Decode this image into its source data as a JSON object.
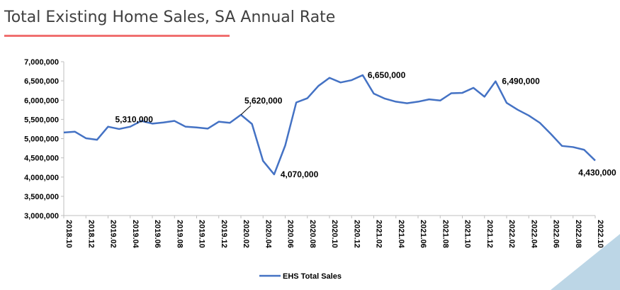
{
  "chart_data": {
    "type": "line",
    "title": "Total Existing Home Sales, SA Annual Rate",
    "xlabel": "",
    "ylabel": "",
    "ylim": [
      3000000,
      7000000
    ],
    "y_ticks": [
      "3,000,000",
      "3,500,000",
      "4,000,000",
      "4,500,000",
      "5,000,000",
      "5,500,000",
      "6,000,000",
      "6,500,000",
      "7,000,000"
    ],
    "x_tick_labels": [
      "2018.10",
      "2018.12",
      "2019.02",
      "2019.04",
      "2019.06",
      "2019.08",
      "2019.10",
      "2019.12",
      "2020.02",
      "2020.04",
      "2020.06",
      "2020.08",
      "2020.10",
      "2020.12",
      "2021.02",
      "2021.04",
      "2021.06",
      "2021.08",
      "2021.10",
      "2021.12",
      "2022.02",
      "2022.04",
      "2022.06",
      "2022.08",
      "2022.10"
    ],
    "categories": [
      "2018.10",
      "2018.11",
      "2018.12",
      "2019.01",
      "2019.02",
      "2019.03",
      "2019.04",
      "2019.05",
      "2019.06",
      "2019.07",
      "2019.08",
      "2019.09",
      "2019.10",
      "2019.11",
      "2019.12",
      "2020.01",
      "2020.02",
      "2020.03",
      "2020.04",
      "2020.05",
      "2020.06",
      "2020.07",
      "2020.08",
      "2020.09",
      "2020.10",
      "2020.11",
      "2020.12",
      "2021.01",
      "2021.02",
      "2021.03",
      "2021.04",
      "2021.05",
      "2021.06",
      "2021.07",
      "2021.08",
      "2021.09",
      "2021.10",
      "2021.11",
      "2021.12",
      "2022.01",
      "2022.02",
      "2022.03",
      "2022.04",
      "2022.05",
      "2022.06",
      "2022.07",
      "2022.08",
      "2022.09",
      "2022.10"
    ],
    "series": [
      {
        "name": "EHS Total Sales",
        "color": "#4472c4",
        "values": [
          5160000,
          5180000,
          5010000,
          4970000,
          5310000,
          5250000,
          5310000,
          5460000,
          5390000,
          5420000,
          5460000,
          5310000,
          5290000,
          5260000,
          5440000,
          5410000,
          5620000,
          5380000,
          4420000,
          4070000,
          4820000,
          5940000,
          6050000,
          6370000,
          6580000,
          6460000,
          6520000,
          6650000,
          6170000,
          6040000,
          5960000,
          5920000,
          5960000,
          6020000,
          5990000,
          6180000,
          6190000,
          6320000,
          6090000,
          6490000,
          5930000,
          5750000,
          5600000,
          5410000,
          5120000,
          4810000,
          4780000,
          4710000,
          4430000
        ]
      }
    ],
    "annotations": [
      {
        "index": 4,
        "text": "5,310,000"
      },
      {
        "index": 16,
        "text": "5,620,000"
      },
      {
        "index": 19,
        "text": "4,070,000"
      },
      {
        "index": 27,
        "text": "6,650,000"
      },
      {
        "index": 39,
        "text": "6,490,000"
      },
      {
        "index": 48,
        "text": "4,430,000"
      }
    ],
    "legend": {
      "position": "bottom",
      "label": "EHS Total Sales"
    },
    "grid": false
  }
}
